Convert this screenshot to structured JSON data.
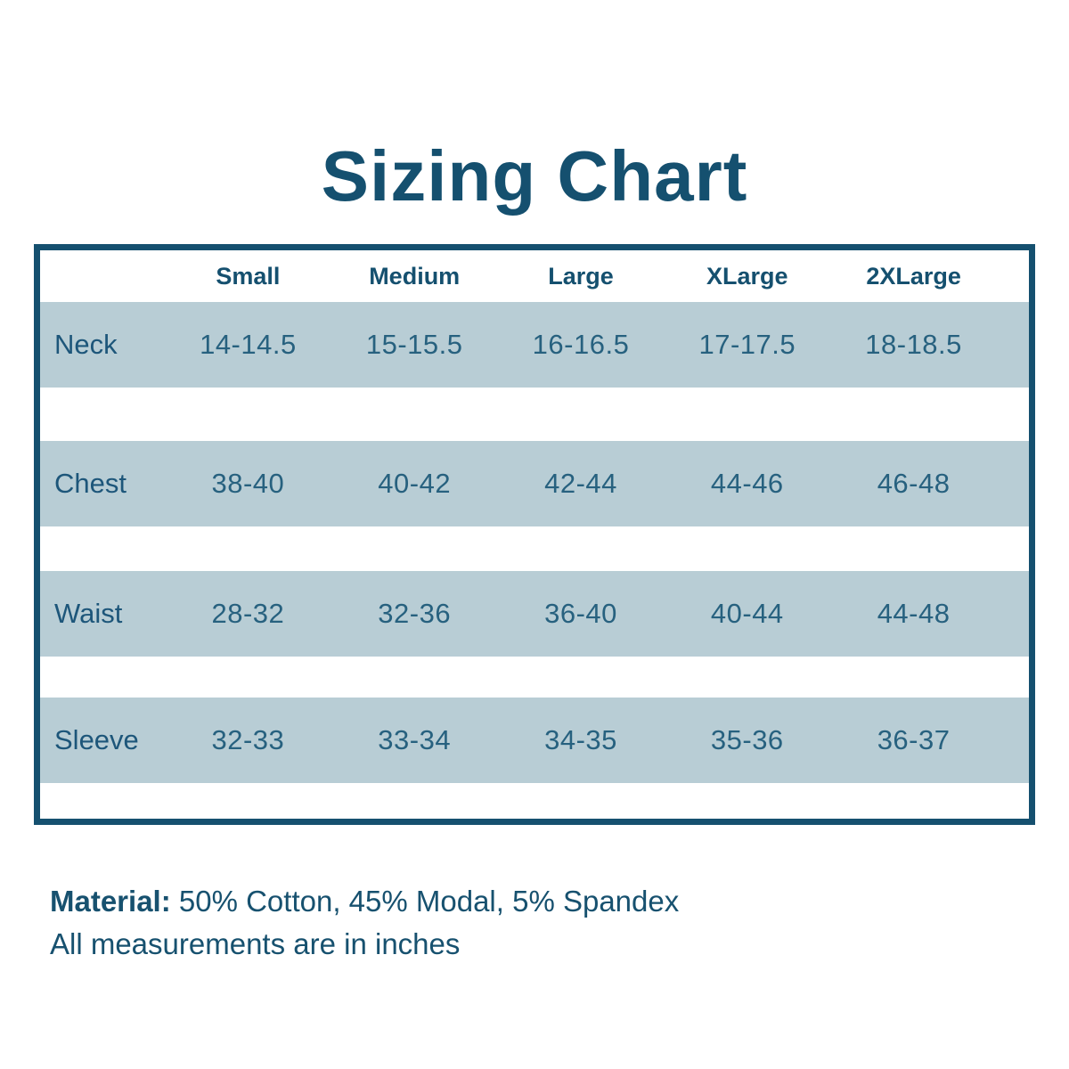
{
  "title": "Sizing Chart",
  "colors": {
    "accent_dark_teal": "#15506f",
    "row_band": "#b8cdd5",
    "value_text": "#27617f",
    "background": "#ffffff"
  },
  "chart_data": {
    "type": "table",
    "title": "Sizing Chart",
    "columns": [
      "",
      "Small",
      "Medium",
      "Large",
      "XLarge",
      "2XLarge"
    ],
    "rows": [
      {
        "label": "Neck",
        "values": [
          "14-14.5",
          "15-15.5",
          "16-16.5",
          "17-17.5",
          "18-18.5"
        ]
      },
      {
        "label": "Chest",
        "values": [
          "38-40",
          "40-42",
          "42-44",
          "44-46",
          "46-48"
        ]
      },
      {
        "label": "Waist",
        "values": [
          "28-32",
          "32-36",
          "36-40",
          "40-44",
          "44-48"
        ]
      },
      {
        "label": "Sleeve",
        "values": [
          "32-33",
          "33-34",
          "34-35",
          "35-36",
          "36-37"
        ]
      }
    ],
    "units": "inches"
  },
  "footer": {
    "material_label": "Material:",
    "material_value": " 50% Cotton, 45% Modal, 5% Spandex",
    "note": "All measurements are in inches"
  }
}
